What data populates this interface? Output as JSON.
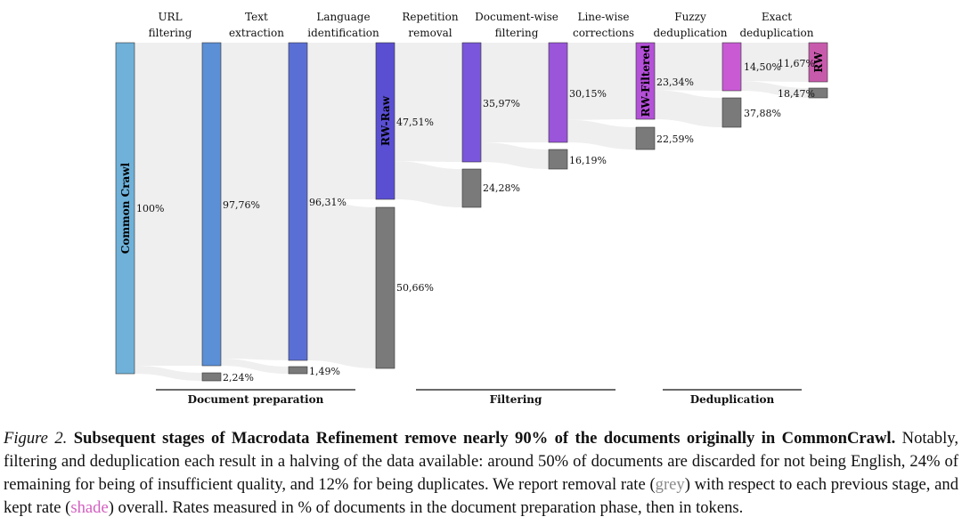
{
  "stages": [
    {
      "line1": "URL",
      "line2": "filtering"
    },
    {
      "line1": "Text",
      "line2": "extraction"
    },
    {
      "line1": "Language",
      "line2": "identification"
    },
    {
      "line1": "Repetition",
      "line2": "removal"
    },
    {
      "line1": "Document-wise",
      "line2": "filtering"
    },
    {
      "line1": "Line-wise",
      "line2": "corrections"
    },
    {
      "line1": "Fuzzy",
      "line2": "deduplication"
    },
    {
      "line1": "Exact",
      "line2": "deduplication"
    }
  ],
  "nodes": {
    "common_crawl": {
      "label": "Common Crawl",
      "kept": 100,
      "kept_label": "100%"
    },
    "steps": [
      {
        "kept": 97.76,
        "kept_label": "97,76%",
        "removed": 2.24,
        "removed_label": "2,24%",
        "name": ""
      },
      {
        "kept": 96.31,
        "kept_label": "96,31%",
        "removed": 1.49,
        "removed_label": "1,49%",
        "name": ""
      },
      {
        "kept": 47.51,
        "kept_label": "47,51%",
        "removed": 50.66,
        "removed_label": "50,66%",
        "name": "RW-Raw"
      },
      {
        "kept": 35.97,
        "kept_label": "35,97%",
        "removed": 24.28,
        "removed_label": "24,28%",
        "name": ""
      },
      {
        "kept": 30.15,
        "kept_label": "30,15%",
        "removed": 16.19,
        "removed_label": "16,19%",
        "name": ""
      },
      {
        "kept": 23.34,
        "kept_label": "23,34%",
        "removed": 22.59,
        "removed_label": "22,59%",
        "name": "RW-Filtered"
      },
      {
        "kept": 14.5,
        "kept_label": "14,50%",
        "removed": 37.88,
        "removed_label": "37,88%",
        "name": ""
      },
      {
        "kept": 11.67,
        "kept_label": "11,67%",
        "removed": 18.47,
        "removed_label": "18,47%",
        "name": "RW"
      }
    ]
  },
  "groups": [
    {
      "label": "Document preparation"
    },
    {
      "label": "Filtering"
    },
    {
      "label": "Deduplication"
    }
  ],
  "colors": {
    "common_crawl": "#6fb1d9",
    "steps": [
      "#5b8fd6",
      "#5a6fd6",
      "#5a4fd2",
      "#7a56dc",
      "#9a55db",
      "#b451d8",
      "#c95ad4",
      "#c85aac"
    ],
    "removed": "#7a7a7a",
    "flow": "#efefef"
  },
  "caption": {
    "fig": "Figure 2.",
    "bold": "Subsequent stages of Macrodata Refinement remove nearly 90% of the documents originally in CommonCrawl.",
    "part1": "Notably, filtering and deduplication each result in a halving of the data available: around 50% of documents are discarded for not being English, 24% of remaining for being of insufficient quality, and 12% for being duplicates. We report removal rate (",
    "grey_word": "grey",
    "part2": ") with respect to each previous stage, and kept rate (",
    "shade_word": "shade",
    "part3": ") overall. Rates measured in % of documents in the document preparation phase, then in tokens.",
    "grey_color": "#8a8a8a",
    "shade_color": "#d35fc0"
  }
}
